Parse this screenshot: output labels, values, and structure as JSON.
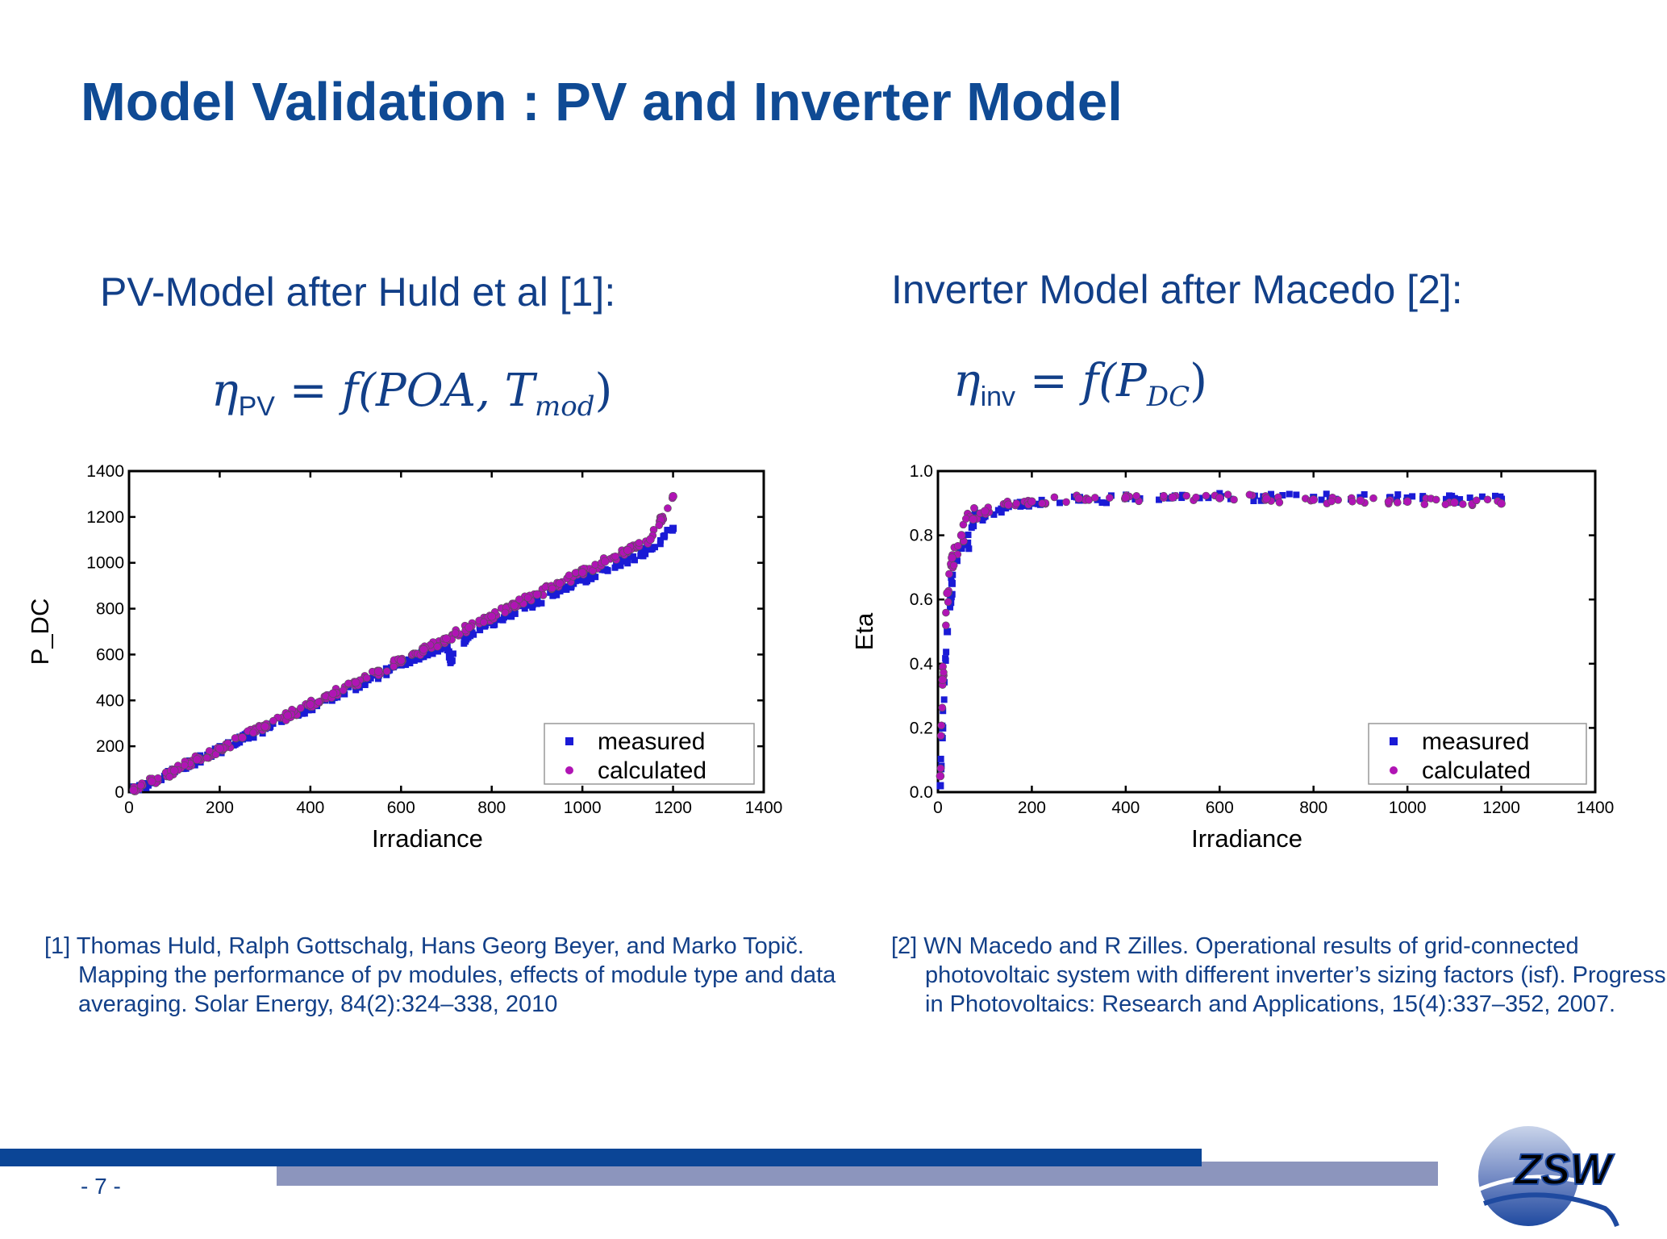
{
  "slide": {
    "title": "Model Validation :  PV and Inverter Model",
    "left_heading": "PV-Model after Huld et al [1]:",
    "right_heading": "Inverter Model after Macedo [2]:",
    "left_formula": {
      "lhs": "η",
      "lhs_sub": "PV",
      "eq": "= f(POA, T",
      "sub_mod": "mod",
      "close": ")"
    },
    "right_formula": {
      "lhs": "η",
      "lhs_sub": "inv",
      "eq": "= f(P",
      "sub_dc": "DC",
      "close": ")"
    },
    "ref1": "[1] Thomas Huld, Ralph Gottschalg, Hans Georg Beyer, and Marko Topič. Mapping the performance of pv modules, effects of module type and data averaging. Solar Energy, 84(2):324–338, 2010",
    "ref2": "[2] WN Macedo and R Zilles. Operational results of grid-connected photovoltaic system with different inverter’s sizing factors (isf). Progress in Photovoltaics: Research and Applications, 15(4):337–352, 2007.",
    "page_number": "- 7 -",
    "logo_text": "ZSW"
  },
  "colors": {
    "title": "#0f4a94",
    "text": "#123f88",
    "measured": "#1a1ad6",
    "calculated": "#b014b4",
    "footer_dark": "#0b4596",
    "footer_light": "#8c95bd"
  },
  "chart_data": [
    {
      "type": "scatter",
      "xlabel": "Irradiance",
      "ylabel": "P_DC",
      "xlim": [
        0,
        1400
      ],
      "ylim": [
        0,
        1400
      ],
      "xticks": [
        "0",
        "200",
        "400",
        "600",
        "800",
        "1000",
        "1200",
        "1400"
      ],
      "yticks": [
        "0",
        "200",
        "400",
        "600",
        "800",
        "1000",
        "1200",
        "1400"
      ],
      "legend": {
        "placement": "lower-right",
        "entries": [
          "measured",
          "calculated"
        ]
      },
      "series": [
        {
          "name": "measured",
          "marker": "square",
          "x": [
            10,
            50,
            100,
            150,
            200,
            250,
            300,
            350,
            400,
            450,
            500,
            550,
            600,
            650,
            700,
            710,
            750,
            800,
            850,
            900,
            950,
            1000,
            1050,
            1100,
            1150,
            1200
          ],
          "y": [
            9,
            45,
            90,
            138,
            185,
            232,
            278,
            325,
            372,
            418,
            463,
            510,
            555,
            603,
            648,
            572,
            695,
            740,
            788,
            832,
            878,
            925,
            970,
            1015,
            1060,
            1150
          ]
        },
        {
          "name": "calculated",
          "marker": "circle",
          "x": [
            10,
            50,
            100,
            150,
            200,
            250,
            300,
            350,
            400,
            450,
            500,
            550,
            600,
            650,
            700,
            750,
            800,
            850,
            900,
            950,
            1000,
            1050,
            1100,
            1150,
            1200
          ],
          "y": [
            9,
            47,
            94,
            142,
            190,
            238,
            286,
            334,
            382,
            430,
            478,
            526,
            574,
            622,
            670,
            718,
            766,
            814,
            862,
            910,
            958,
            1006,
            1054,
            1102,
            1290
          ]
        }
      ]
    },
    {
      "type": "scatter",
      "xlabel": "Irradiance",
      "ylabel": "Eta",
      "xlim": [
        0,
        1400
      ],
      "ylim": [
        0.0,
        1.0
      ],
      "xticks": [
        "0",
        "200",
        "400",
        "600",
        "800",
        "1000",
        "1200",
        "1400"
      ],
      "yticks": [
        "0.0",
        "0.2",
        "0.4",
        "0.6",
        "0.8",
        "1.0"
      ],
      "legend": {
        "placement": "lower-right",
        "entries": [
          "measured",
          "calculated"
        ]
      },
      "series": [
        {
          "name": "measured",
          "marker": "square",
          "x": [
            5,
            10,
            20,
            30,
            50,
            75,
            100,
            150,
            200,
            300,
            400,
            500,
            600,
            700,
            800,
            900,
            1000,
            1100,
            1200
          ],
          "y": [
            0.02,
            0.2,
            0.5,
            0.65,
            0.76,
            0.83,
            0.86,
            0.89,
            0.9,
            0.91,
            0.915,
            0.918,
            0.919,
            0.919,
            0.918,
            0.917,
            0.916,
            0.914,
            0.912
          ]
        },
        {
          "name": "calculated",
          "marker": "circle",
          "x": [
            5,
            10,
            20,
            30,
            50,
            75,
            100,
            150,
            200,
            300,
            400,
            500,
            600,
            700,
            800,
            900,
            1000,
            1100,
            1200
          ],
          "y": [
            0.05,
            0.35,
            0.62,
            0.73,
            0.8,
            0.85,
            0.875,
            0.895,
            0.905,
            0.915,
            0.918,
            0.918,
            0.916,
            0.914,
            0.911,
            0.908,
            0.905,
            0.902,
            0.899
          ]
        }
      ]
    }
  ]
}
